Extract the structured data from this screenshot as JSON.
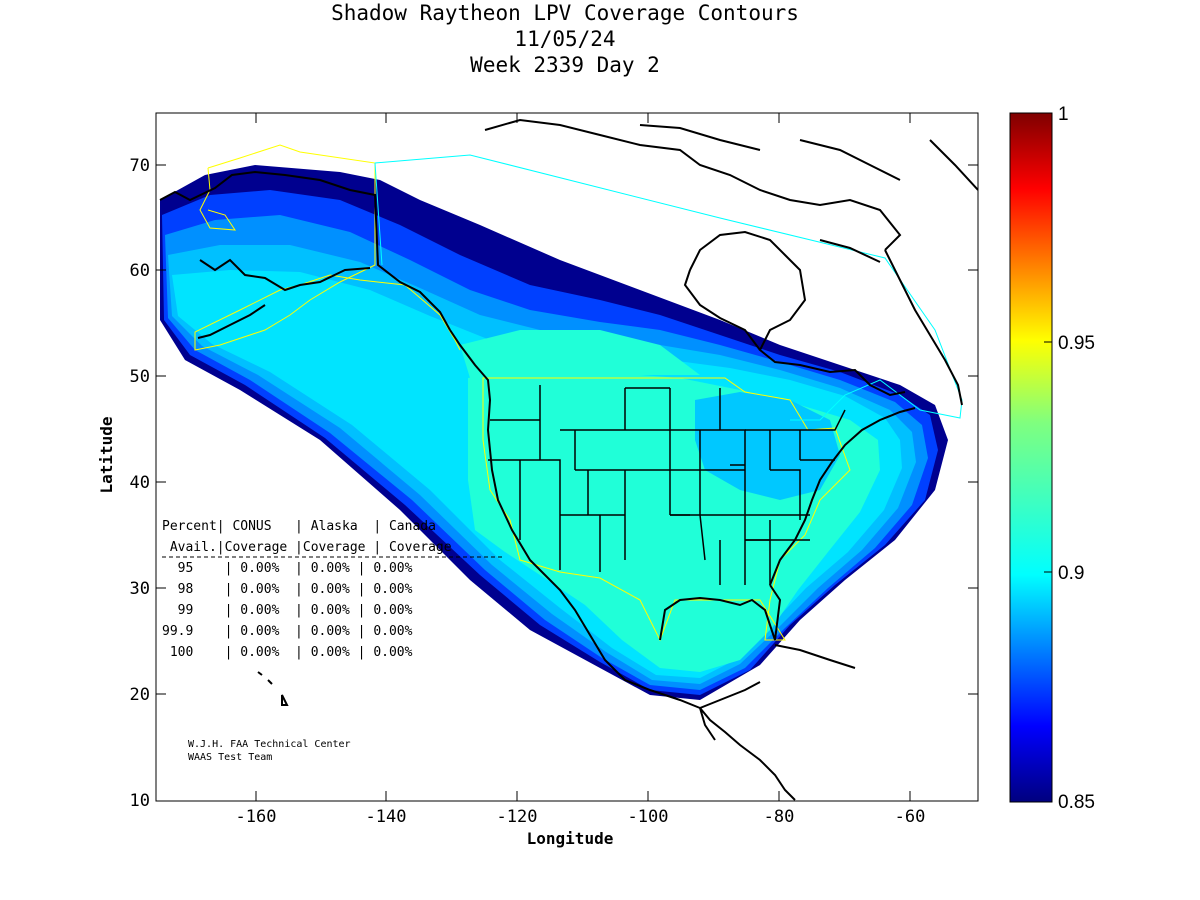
{
  "title": {
    "line1": "Shadow Raytheon LPV Coverage Contours",
    "line2": "11/05/24",
    "line3": "Week 2339 Day 2"
  },
  "axes": {
    "xlabel": "Longitude",
    "ylabel": "Latitude",
    "xticks": [
      "-160",
      "-140",
      "-120",
      "-100",
      "-80",
      "-60"
    ],
    "yticks": [
      "70",
      "60",
      "50",
      "40",
      "30",
      "20",
      "10"
    ],
    "xlim": [
      -175,
      -50
    ],
    "ylim": [
      10,
      75
    ]
  },
  "colorbar": {
    "ticks": [
      "1",
      "0.95",
      "0.9",
      "0.85"
    ],
    "range": [
      0.85,
      1.0
    ]
  },
  "table": {
    "header1": "Percent| CONUS   | Alaska  | Canada",
    "header2": " Avail.|Coverage |Coverage | Coverage",
    "rows": [
      "  95    | 0.00%  | 0.00% | 0.00%",
      "  98    | 0.00%  | 0.00% | 0.00%",
      "  99    | 0.00%  | 0.00% | 0.00%",
      "99.9    | 0.00%  | 0.00% | 0.00%",
      " 100    | 0.00%  | 0.00% | 0.00%"
    ]
  },
  "credit": {
    "line1": "W.J.H. FAA Technical Center",
    "line2": "WAAS Test Team"
  },
  "colors": {
    "deep_blue": "#00008f",
    "mid_blue": "#0050ff",
    "light_blue": "#00a8ff",
    "cyan": "#00dcff",
    "aqua": "#20ffd0",
    "yellow_boundary": "#ffff00",
    "cyan_boundary": "#00ffff"
  }
}
